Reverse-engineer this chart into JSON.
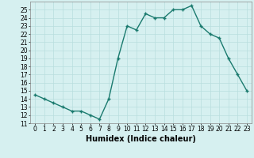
{
  "x": [
    0,
    1,
    2,
    3,
    4,
    5,
    6,
    7,
    8,
    9,
    10,
    11,
    12,
    13,
    14,
    15,
    16,
    17,
    18,
    19,
    20,
    21,
    22,
    23
  ],
  "y": [
    14.5,
    14.0,
    13.5,
    13.0,
    12.5,
    12.5,
    12.0,
    11.5,
    14.0,
    19.0,
    23.0,
    22.5,
    24.5,
    24.0,
    24.0,
    25.0,
    25.0,
    25.5,
    23.0,
    22.0,
    21.5,
    19.0,
    17.0,
    15.0
  ],
  "xlabel": "Humidex (Indice chaleur)",
  "ylim": [
    11,
    26
  ],
  "yticks": [
    11,
    12,
    13,
    14,
    15,
    16,
    17,
    18,
    19,
    20,
    21,
    22,
    23,
    24,
    25
  ],
  "xticks": [
    0,
    1,
    2,
    3,
    4,
    5,
    6,
    7,
    8,
    9,
    10,
    11,
    12,
    13,
    14,
    15,
    16,
    17,
    18,
    19,
    20,
    21,
    22,
    23
  ],
  "line_color": "#1a7a6e",
  "marker_color": "#1a7a6e",
  "bg_color": "#d6f0f0",
  "grid_color": "#b8dede",
  "tick_fontsize": 5.5,
  "xlabel_fontsize": 7.0,
  "line_width": 1.0,
  "marker_size": 3.5
}
